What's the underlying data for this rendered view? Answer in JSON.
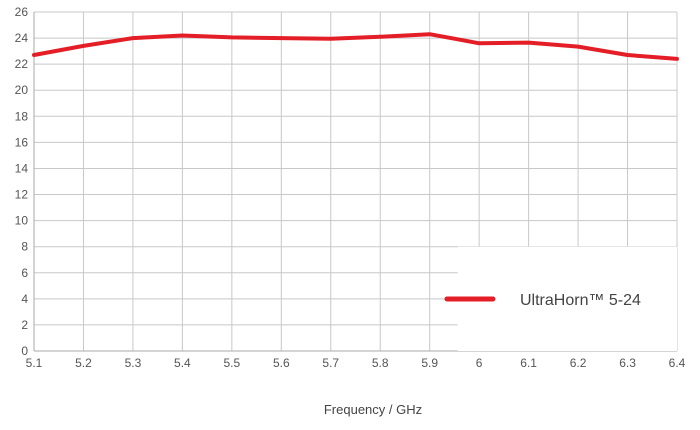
{
  "chart_data": {
    "type": "line",
    "xlabel": "Frequency / GHz",
    "ylabel": "",
    "x_ticks": [
      "5.1",
      "5.2",
      "5.3",
      "5.4",
      "5.5",
      "5.6",
      "5.7",
      "5.8",
      "5.9",
      "6",
      "6.1",
      "6.2",
      "6.3",
      "6.4"
    ],
    "y_ticks": [
      "0",
      "2",
      "4",
      "6",
      "8",
      "10",
      "12",
      "14",
      "16",
      "18",
      "20",
      "22",
      "24",
      "26"
    ],
    "xlim": [
      5.1,
      6.4
    ],
    "ylim": [
      0,
      26
    ],
    "grid": true,
    "legend_position": "bottom-right",
    "series": [
      {
        "name": "UltraHorn™ 5-24",
        "color": "#e41e26",
        "x": [
          5.1,
          5.2,
          5.3,
          5.4,
          5.5,
          5.6,
          5.7,
          5.8,
          5.9,
          5.95,
          6.0,
          6.1,
          6.2,
          6.3,
          6.4
        ],
        "y": [
          22.7,
          23.4,
          24.0,
          24.2,
          24.05,
          24.0,
          23.95,
          24.1,
          24.3,
          23.95,
          23.6,
          23.65,
          23.35,
          22.7,
          22.4
        ]
      }
    ]
  }
}
